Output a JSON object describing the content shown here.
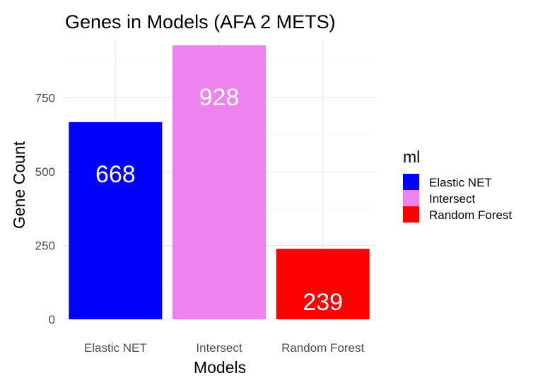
{
  "chart_data": {
    "type": "bar",
    "title": "Genes in Models (AFA 2 METS)",
    "xlabel": "Models",
    "ylabel": "Gene Count",
    "categories": [
      "Elastic NET",
      "Intersect",
      "Random Forest"
    ],
    "values": [
      668,
      928,
      239
    ],
    "data_labels": [
      "668",
      "928",
      "239"
    ],
    "colors": [
      "#0000ff",
      "#ee82ee",
      "#ff0000"
    ],
    "ylim": [
      0,
      950
    ],
    "yticks": [
      0,
      250,
      500,
      750
    ],
    "ytick_labels": [
      "0",
      "250",
      "500",
      "750"
    ],
    "grid": true,
    "legend": {
      "title": "ml",
      "position": "right",
      "entries": [
        "Elastic NET",
        "Intersect",
        "Random Forest"
      ]
    }
  }
}
